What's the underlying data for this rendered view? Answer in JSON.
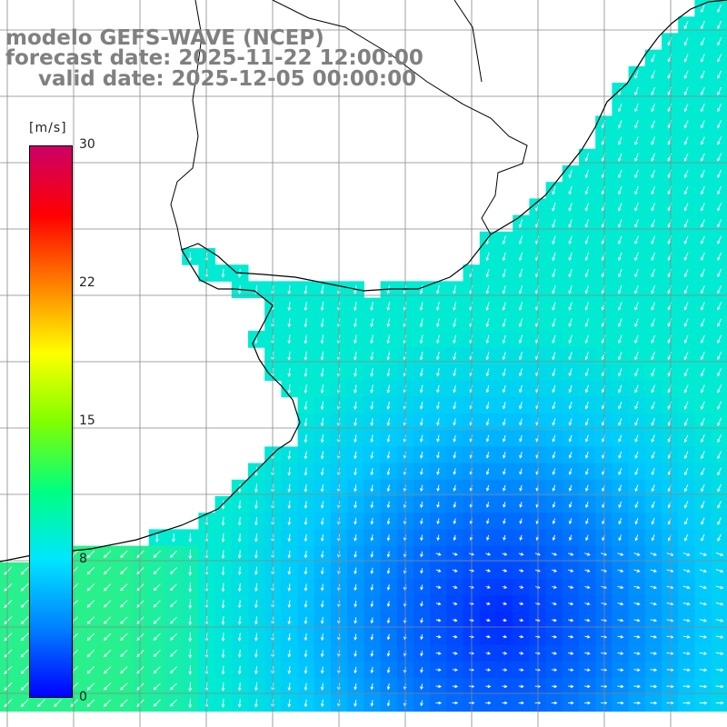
{
  "header": {
    "line1": "modelo GEFS-WAVE (NCEP)",
    "line2": "forecast date: 2025-11-22 12:00:00",
    "line3": "valid date: 2025-12-05 00:00:00"
  },
  "colorbar": {
    "units": "[m/s]",
    "ticks": [
      {
        "label": "30",
        "value": 30
      },
      {
        "label": "22",
        "value": 22
      },
      {
        "label": "15",
        "value": 15
      },
      {
        "label": "8",
        "value": 8
      },
      {
        "label": "0",
        "value": 0
      }
    ],
    "colors": [
      "#0000ff",
      "#0080ff",
      "#00e6ff",
      "#00ff80",
      "#80ff00",
      "#ffff00",
      "#ff8000",
      "#ff0000",
      "#cc0066"
    ]
  },
  "map": {
    "land_color": "#ffffff",
    "grid_color": "#888888",
    "coast_color": "#000000",
    "arrow_color": "#ffffff"
  }
}
